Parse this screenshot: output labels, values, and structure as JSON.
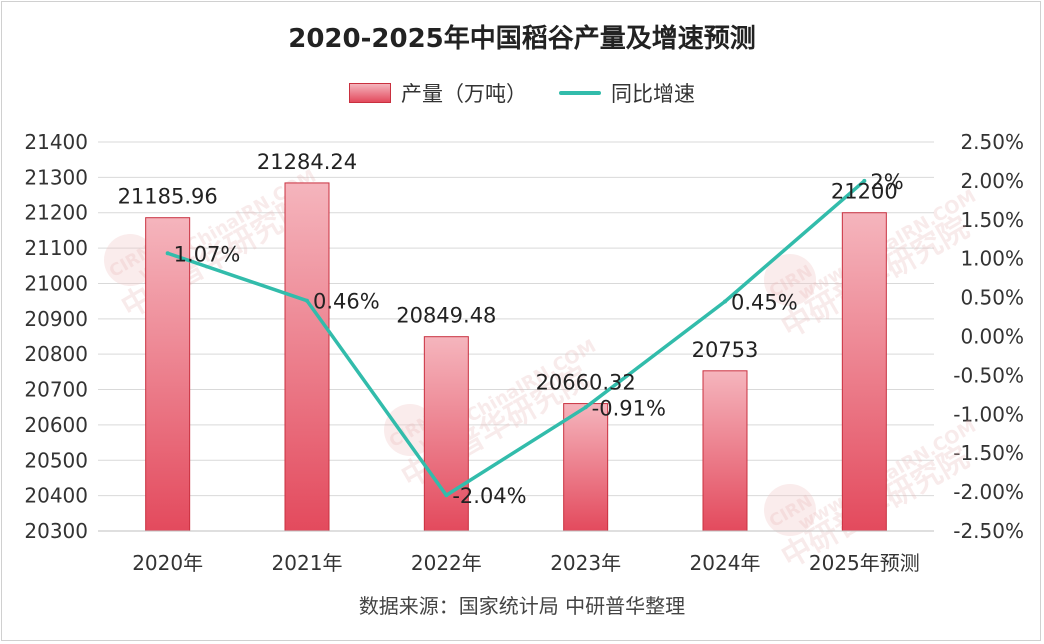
{
  "chart_data": {
    "type": "bar",
    "title": "2020-2025年中国稻谷产量及增速预测",
    "categories": [
      "2020年",
      "2021年",
      "2022年",
      "2023年",
      "2024年",
      "2025年预测"
    ],
    "series": [
      {
        "name": "产量（万吨）",
        "kind": "bar",
        "axis": "left",
        "values": [
          21185.96,
          21284.24,
          20849.48,
          20660.32,
          20753,
          21200
        ],
        "labels": [
          "21185.96",
          "21284.24",
          "20849.48",
          "20660.32",
          "20753",
          "21200"
        ]
      },
      {
        "name": "同比增速",
        "kind": "line",
        "axis": "right",
        "values": [
          1.07,
          0.46,
          -2.04,
          -0.91,
          0.45,
          2.0
        ],
        "labels": [
          "1.07%",
          "0.46%",
          "-2.04%",
          "-0.91%",
          "0.45%",
          "2%"
        ]
      }
    ],
    "y_left": {
      "range": [
        20300,
        21400
      ],
      "ticks": [
        "21400",
        "21300",
        "21200",
        "21100",
        "21000",
        "20900",
        "20800",
        "20700",
        "20600",
        "20500",
        "20400",
        "20300"
      ]
    },
    "y_right": {
      "range": [
        -2.5,
        2.5
      ],
      "ticks": [
        "2.50%",
        "2.00%",
        "1.50%",
        "1.00%",
        "0.50%",
        "0.00%",
        "-0.50%",
        "-1.00%",
        "-1.50%",
        "-2.00%",
        "-2.50%"
      ]
    },
    "grid": true,
    "legend_position": "top",
    "colors": {
      "bar_top": "#f5b5bd",
      "bar_bottom": "#e34a5d",
      "bar_border": "#c9303f",
      "line": "#32bcab"
    }
  },
  "source_text": "数据来源：国家统计局 中研普华整理",
  "watermark": {
    "text_cn": "中研普华研究院",
    "text_url": "www.ChinaIRN.COM",
    "logo": "CIRN"
  }
}
